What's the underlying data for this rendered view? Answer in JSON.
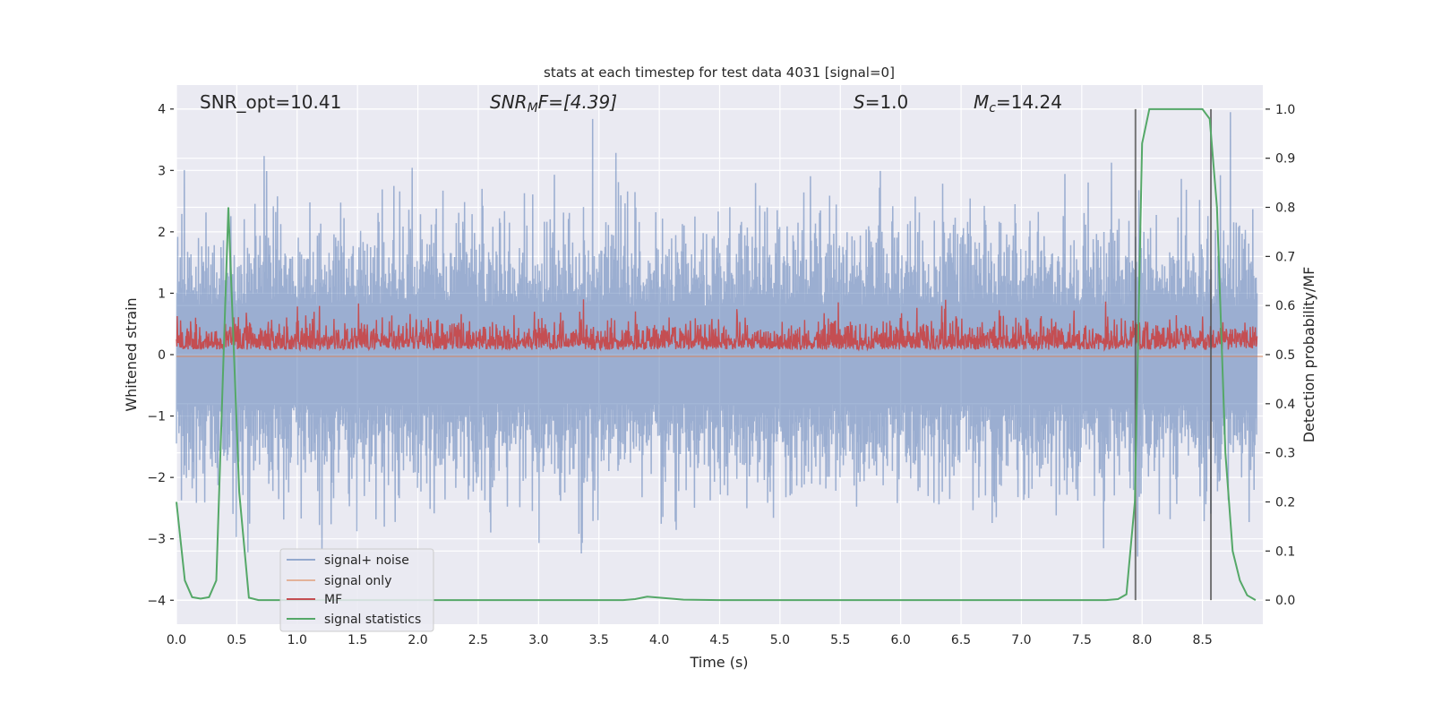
{
  "chart_data": {
    "type": "line",
    "title": "stats at each timestep for test data 4031 [signal=0]",
    "xlabel": "Time (s)",
    "ylabel": "Whitened strain",
    "ylabel_right": "Detection probability/MF",
    "xlim": [
      0,
      9.0
    ],
    "ylim": [
      -4.39,
      4.39
    ],
    "ylim_right": [
      -0.049,
      1.049
    ],
    "xticks": [
      "0.0",
      "0.5",
      "1.0",
      "1.5",
      "2.0",
      "2.5",
      "3.0",
      "3.5",
      "4.0",
      "4.5",
      "5.0",
      "5.5",
      "6.0",
      "6.5",
      "7.0",
      "7.5",
      "8.0",
      "8.5"
    ],
    "yticks": [
      "4",
      "3",
      "2",
      "1",
      "0",
      "−1",
      "−2",
      "−3",
      "−4"
    ],
    "yticks_right": [
      "1.0",
      "0.9",
      "0.8",
      "0.7",
      "0.6",
      "0.5",
      "0.4",
      "0.3",
      "0.2",
      "0.1",
      "0.0"
    ],
    "grid": true,
    "legend_placement": "lower-left",
    "annotations": {
      "snr_opt": "SNR_opt=10.41",
      "snr_mf_prefix": "SNR",
      "snr_mf_sub": "M",
      "snr_mf_rest": "F=[4.39]",
      "s": "S",
      "s_rest": "=1.0",
      "mc": "M",
      "mc_sub": "c",
      "mc_rest": "=14.24"
    },
    "series": [
      {
        "name": "signal+ noise",
        "color": "#4c72b0",
        "axis": "left",
        "description_values": "dense whitened noise, mostly within [-2.5, 2.5], peaks to about ±3.9"
      },
      {
        "name": "signal only",
        "color": "#dd8452",
        "axis": "left",
        "values_const": 0.0
      },
      {
        "name": "MF",
        "color": "#c44e52",
        "axis": "left",
        "description_values": "noisy trace between 0.05 and 0.9, mean about 0.3"
      },
      {
        "name": "signal statistics",
        "color": "#55a868",
        "axis": "right",
        "x": [
          0,
          0.07,
          0.13,
          0.2,
          0.27,
          0.33,
          0.43,
          0.52,
          0.6,
          0.68,
          3.7,
          3.8,
          3.9,
          4.0,
          4.2,
          4.5,
          7.7,
          7.8,
          7.87,
          7.94,
          8.0,
          8.06,
          8.5,
          8.56,
          8.62,
          8.69,
          8.75,
          8.81,
          8.87,
          8.94
        ],
        "y": [
          0.2,
          0.04,
          0.006,
          0.003,
          0.006,
          0.04,
          0.8,
          0.22,
          0.005,
          0.0,
          0.0,
          0.002,
          0.007,
          0.005,
          0.001,
          0.0,
          0.0,
          0.002,
          0.012,
          0.2,
          0.93,
          1.0,
          1.0,
          0.98,
          0.8,
          0.3,
          0.1,
          0.04,
          0.01,
          0.0
        ]
      }
    ],
    "vlines": {
      "x": [
        7.945,
        8.57
      ],
      "color": "#555555",
      "from": 0,
      "to": 1.0
    }
  }
}
